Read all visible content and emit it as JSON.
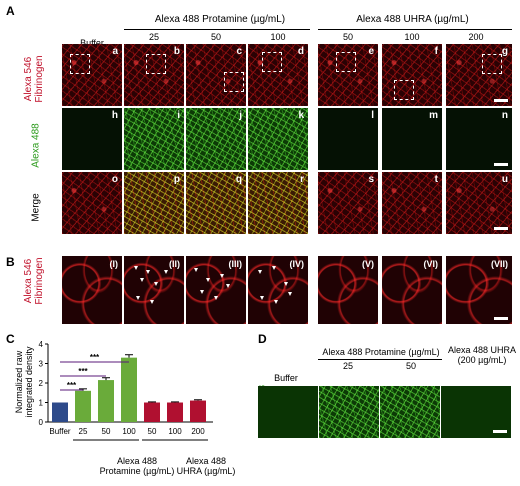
{
  "panelA": {
    "label": "A",
    "groupProtamine": "Alexa 488 Protamine (µg/mL)",
    "groupUHRA": "Alexa 488 UHRA (µg/mL)",
    "columns": [
      "Buffer",
      "25",
      "50",
      "100",
      "50",
      "100",
      "200"
    ],
    "rowLabels": {
      "fib_line1": "Alexa 546",
      "fib_line2": "Fibrinogen",
      "a488": "Alexa 488",
      "merge": "Merge"
    },
    "row1Letters": [
      "a",
      "b",
      "c",
      "d",
      "e",
      "f",
      "g"
    ],
    "row2Letters": [
      "h",
      "i",
      "j",
      "k",
      "l",
      "m",
      "n"
    ],
    "row3Letters": [
      "o",
      "p",
      "q",
      "r",
      "s",
      "t",
      "u"
    ]
  },
  "panelB": {
    "label": "B",
    "rowLabel_line1": "Alexa 546",
    "rowLabel_line2": "Fibrinogen",
    "romans": [
      "(I)",
      "(II)",
      "(III)",
      "(IV)",
      "(V)",
      "(VI)",
      "(VII)"
    ]
  },
  "panelC": {
    "label": "C",
    "ylabel_line1": "Normalized raw",
    "ylabel_line2": "integrated density",
    "group1_line1": "Alexa 488",
    "group1_line2": "Protamine (µg/mL)",
    "group2_line1": "Alexa 488",
    "group2_line2": "UHRA (µg/mL)",
    "sig": "***"
  },
  "panelD": {
    "label": "D",
    "groupProtamine": "Alexa 488 Protamine (µg/mL)",
    "uhra_line1": "Alexa 488 UHRA",
    "uhra_line2": "(200 µg/mL)",
    "columns": [
      "Buffer",
      "25",
      "50"
    ],
    "rowLabel": "Alexa 488"
  },
  "colors": {
    "red_label": "#c0102a",
    "green_label": "#2a9a1a",
    "buffer_bar": "#2d4a8a",
    "protamine_bar": "#6aab3a",
    "uhra_bar": "#b01030"
  },
  "chart_data": {
    "type": "bar",
    "categories": [
      "Buffer",
      "25",
      "50",
      "100",
      "50",
      "100",
      "200"
    ],
    "values": [
      1.0,
      1.6,
      2.15,
      3.3,
      1.0,
      1.0,
      1.1
    ],
    "errors": [
      0,
      0.1,
      0.12,
      0.15,
      0.03,
      0.03,
      0.04
    ],
    "groups": [
      "Buffer",
      "Protamine",
      "Protamine",
      "Protamine",
      "UHRA",
      "UHRA",
      "UHRA"
    ],
    "ylabel": "Normalized raw integrated density",
    "ylim": [
      0,
      4
    ],
    "yticks": [
      "0",
      "1",
      "2",
      "3",
      "4"
    ]
  }
}
